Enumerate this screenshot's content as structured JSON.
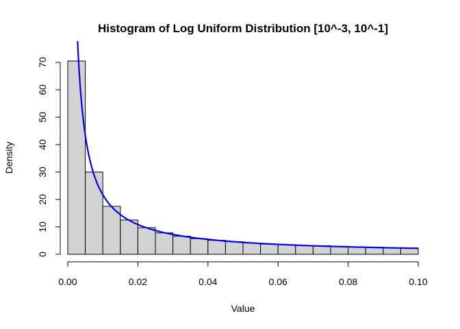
{
  "chart_data": {
    "type": "bar",
    "title": "Histogram of Log Uniform Distribution [10^-3, 10^-1]",
    "xlabel": "Value",
    "ylabel": "Density",
    "xlim": [
      0,
      0.1
    ],
    "ylim": [
      0,
      70
    ],
    "x_ticks": [
      0,
      0.02,
      0.04,
      0.06,
      0.08,
      0.1
    ],
    "x_tick_labels": [
      "0.00",
      "0.02",
      "0.04",
      "0.06",
      "0.08",
      "0.10"
    ],
    "y_ticks": [
      0,
      10,
      20,
      30,
      40,
      50,
      60,
      70
    ],
    "y_tick_labels": [
      "0",
      "10",
      "20",
      "30",
      "40",
      "50",
      "60",
      "70"
    ],
    "bin_edges": [
      0,
      0.005,
      0.01,
      0.015,
      0.02,
      0.025,
      0.03,
      0.035,
      0.04,
      0.045,
      0.05,
      0.055,
      0.06,
      0.065,
      0.07,
      0.075,
      0.08,
      0.085,
      0.09,
      0.095,
      0.1
    ],
    "values": [
      70.5,
      30,
      17.5,
      12.5,
      9.7,
      7.8,
      6.6,
      5.7,
      5.1,
      4.6,
      4.1,
      3.7,
      3.5,
      3.2,
      3.1,
      2.9,
      2.7,
      2.6,
      2.3,
      2.3
    ],
    "series": [
      {
        "type": "line",
        "color": "#0000ee",
        "function": "1/(x*ln(100))",
        "x_range": [
          0.001,
          0.1
        ]
      }
    ],
    "grid": false,
    "colors": {
      "bar_fill": "#d3d3d3",
      "bar_stroke": "#000000",
      "curve": "#0000ee"
    }
  }
}
